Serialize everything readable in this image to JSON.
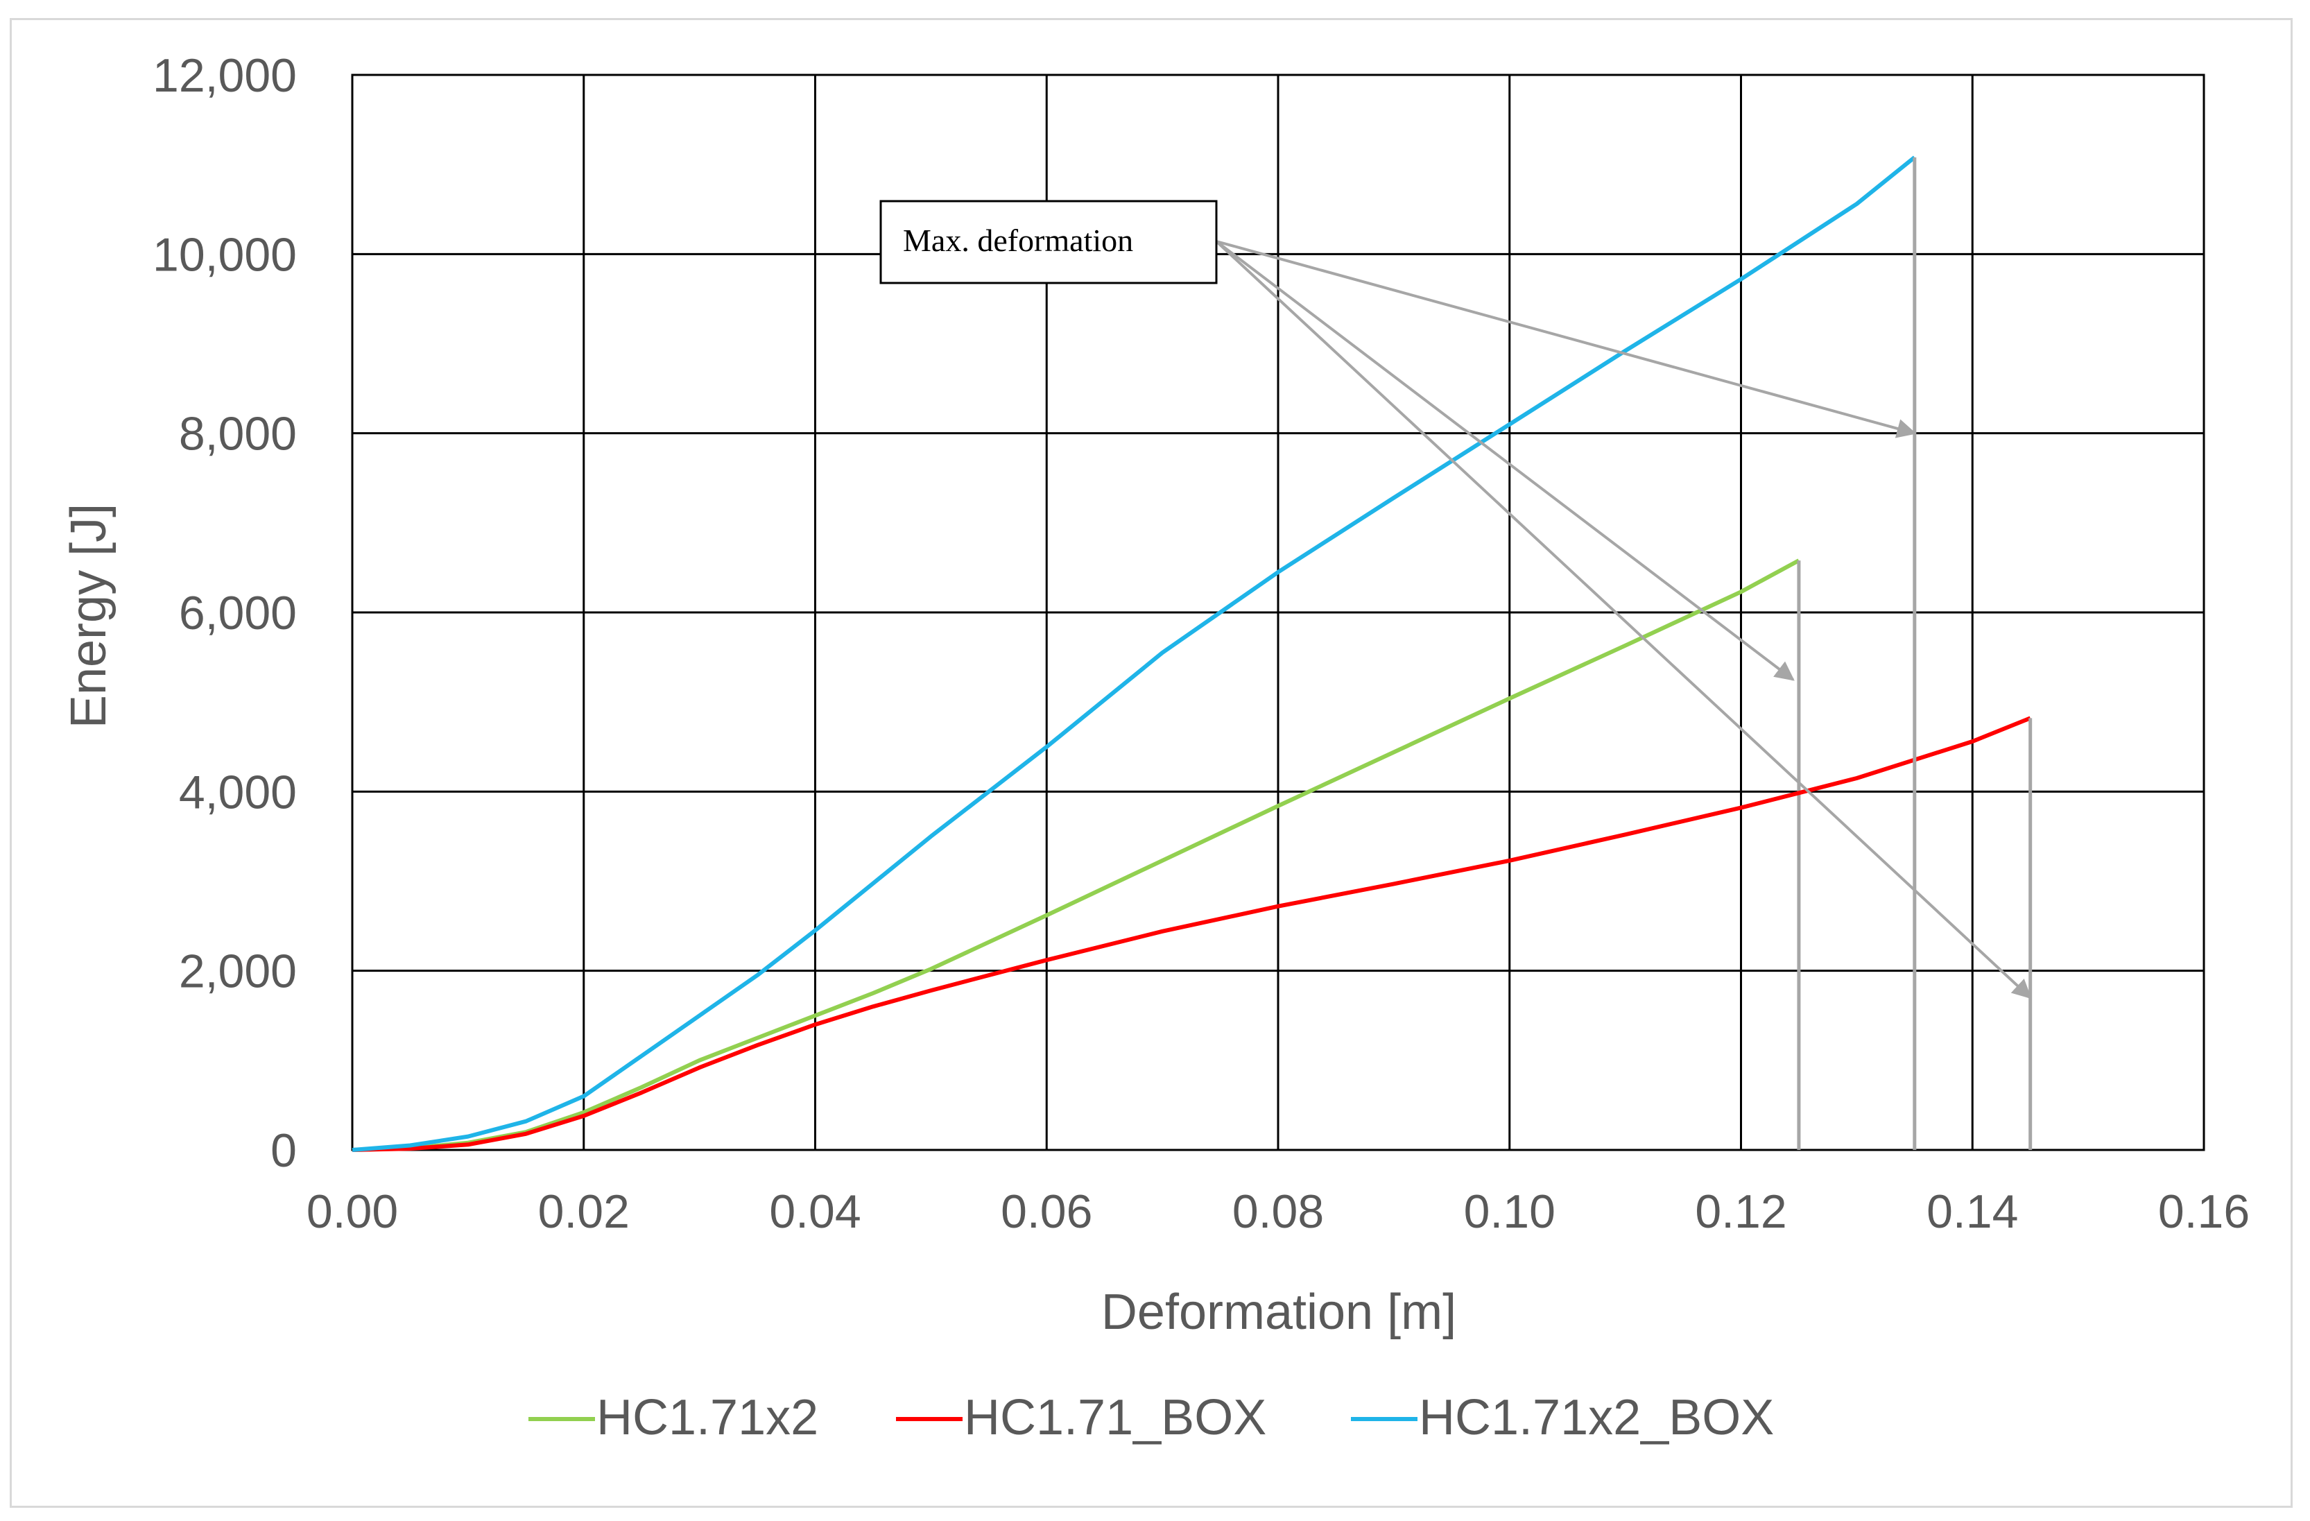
{
  "chart_data": {
    "type": "line",
    "title": "",
    "xlabel": "Deformation [m]",
    "ylabel": "Energy [J]",
    "xlim": [
      0,
      0.16
    ],
    "ylim": [
      0,
      12000
    ],
    "x_ticks": [
      0,
      0.02,
      0.04,
      0.06,
      0.08,
      0.1,
      0.12,
      0.14,
      0.16
    ],
    "x_tick_labels": [
      "0.00",
      "0.02",
      "0.04",
      "0.06",
      "0.08",
      "0.10",
      "0.12",
      "0.14",
      "0.16"
    ],
    "y_ticks": [
      0,
      2000,
      4000,
      6000,
      8000,
      10000,
      12000
    ],
    "y_tick_labels": [
      "0",
      "2,000",
      "4,000",
      "6,000",
      "8,000",
      "10,000",
      "12,000"
    ],
    "grid": true,
    "legend_position": "bottom",
    "series": [
      {
        "name": "HC1.71x2",
        "color": "#92d050",
        "x": [
          0,
          0.005,
          0.01,
          0.015,
          0.02,
          0.025,
          0.03,
          0.035,
          0.04,
          0.045,
          0.05,
          0.06,
          0.07,
          0.08,
          0.09,
          0.1,
          0.11,
          0.12,
          0.125,
          0.125
        ],
        "y": [
          0,
          20,
          80,
          200,
          420,
          700,
          1000,
          1250,
          1500,
          1750,
          2020,
          2620,
          3230,
          3840,
          4440,
          5040,
          5630,
          6230,
          6580,
          0
        ]
      },
      {
        "name": "HC1.71_BOX",
        "color": "#ff0000",
        "x": [
          0,
          0.005,
          0.01,
          0.015,
          0.02,
          0.025,
          0.03,
          0.035,
          0.04,
          0.045,
          0.05,
          0.055,
          0.06,
          0.07,
          0.08,
          0.09,
          0.1,
          0.11,
          0.12,
          0.13,
          0.14,
          0.145,
          0.145
        ],
        "y": [
          0,
          15,
          60,
          180,
          380,
          640,
          920,
          1170,
          1400,
          1600,
          1780,
          1950,
          2120,
          2440,
          2720,
          2970,
          3230,
          3520,
          3820,
          4150,
          4560,
          4820,
          0
        ]
      },
      {
        "name": "HC1.71x2_BOX",
        "color": "#1fb4e8",
        "x": [
          0,
          0.005,
          0.01,
          0.015,
          0.02,
          0.025,
          0.03,
          0.035,
          0.04,
          0.05,
          0.06,
          0.07,
          0.08,
          0.09,
          0.1,
          0.11,
          0.12,
          0.13,
          0.135,
          0.135
        ],
        "y": [
          0,
          50,
          150,
          320,
          600,
          1050,
          1500,
          1950,
          2450,
          3500,
          4500,
          5550,
          6450,
          7280,
          8100,
          8920,
          9720,
          10560,
          11080,
          0
        ]
      }
    ],
    "annotations": [
      {
        "text": "Max. deformation",
        "arrow_targets": [
          {
            "x": 0.135,
            "y": 8000
          },
          {
            "x": 0.1245,
            "y": 5250
          },
          {
            "x": 0.145,
            "y": 1700
          }
        ]
      }
    ]
  }
}
